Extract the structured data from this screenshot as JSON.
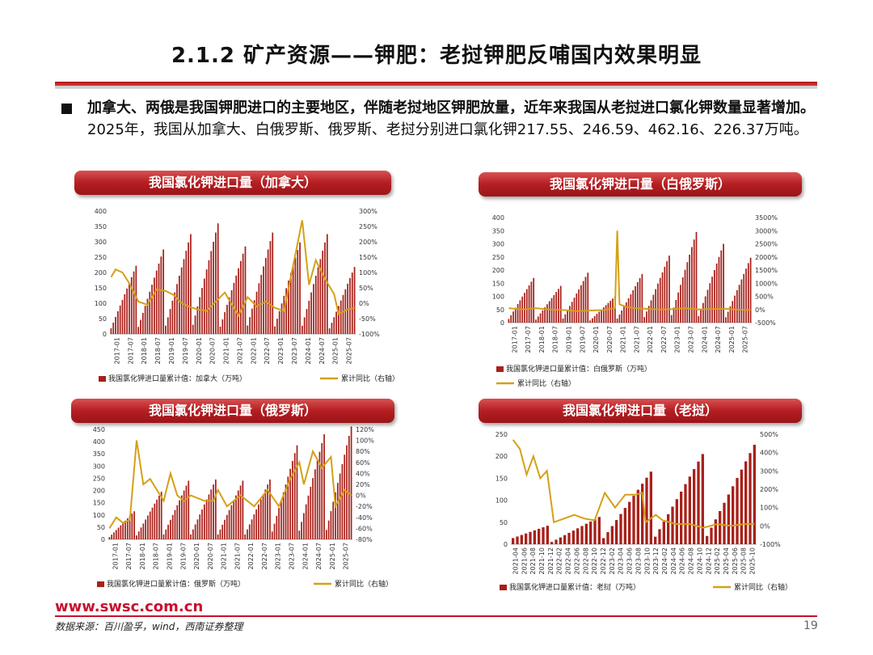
{
  "slide": {
    "title": "2.1.2 矿产资源——钾肥：老挝钾肥反哺国内效果明显",
    "bullet_bold": "加拿大、两俄是我国钾肥进口的主要地区，伴随老挝地区钾肥放量，近年来我国从老挝进口氯化钾数量显著增加。",
    "bullet_rest": "2025年，我国从加拿大、白俄罗斯、俄罗斯、老挝分别进口氯化钾217.55、246.59、462.16、226.37万吨。",
    "footer_url": "www.swsc.com.cn",
    "source": "数据来源：百川盈孚，wind，西南证券整理",
    "page": "19"
  },
  "colors": {
    "bar": "#a8201a",
    "line": "#d4a017",
    "accent": "#c8102e"
  },
  "chart_data": [
    {
      "type": "bar",
      "title": "我国氯化钾进口量（加拿大）",
      "x_start": "2017-01",
      "x_end": "2025-12",
      "tick_labels": [
        "2017-01",
        "2017-07",
        "2018-01",
        "2018-07",
        "2019-01",
        "2019-07",
        "2020-01",
        "2020-07",
        "2021-01",
        "2021-07",
        "2022-01",
        "2022-07",
        "2023-01",
        "2023-07",
        "2024-01",
        "2024-07",
        "2025-01",
        "2025-07"
      ],
      "y_left": {
        "min": 0,
        "max": 400,
        "ticks": [
          "0",
          "50",
          "100",
          "150",
          "200",
          "250",
          "300",
          "350",
          "400"
        ]
      },
      "y_right": {
        "min": -100,
        "max": 300,
        "ticks": [
          "-100%",
          "-50%",
          "0%",
          "50%",
          "100%",
          "150%",
          "200%",
          "250%",
          "300%"
        ]
      },
      "series": [
        {
          "name": "我国氯化钾进口量累计值：加拿大（万吨）",
          "type": "bar",
          "axis": "left",
          "year_end_values": [
            222,
            275,
            325,
            360,
            285,
            330,
            298,
            325,
            218
          ]
        },
        {
          "name": "累计同比（右轴）",
          "type": "line",
          "axis": "right",
          "points": [
            [
              0,
              85
            ],
            [
              2,
              110
            ],
            [
              5,
              100
            ],
            [
              8,
              65
            ],
            [
              12,
              5
            ],
            [
              16,
              -5
            ],
            [
              20,
              45
            ],
            [
              24,
              40
            ],
            [
              28,
              25
            ],
            [
              30,
              5
            ],
            [
              34,
              -10
            ],
            [
              38,
              -20
            ],
            [
              42,
              -25
            ],
            [
              46,
              5
            ],
            [
              50,
              35
            ],
            [
              56,
              -40
            ],
            [
              60,
              20
            ],
            [
              64,
              -10
            ],
            [
              68,
              5
            ],
            [
              72,
              -15
            ],
            [
              76,
              -25
            ],
            [
              84,
              270
            ],
            [
              87,
              60
            ],
            [
              90,
              140
            ],
            [
              94,
              80
            ],
            [
              98,
              30
            ],
            [
              100,
              -35
            ],
            [
              104,
              -20
            ],
            [
              107,
              -15
            ]
          ]
        }
      ],
      "legend": "bottom"
    },
    {
      "type": "bar",
      "title": "我国氯化钾进口量（白俄罗斯）",
      "x_start": "2017-01",
      "x_end": "2025-12",
      "tick_labels": [
        "2017-01",
        "2017-07",
        "2018-01",
        "2018-07",
        "2019-01",
        "2019-07",
        "2020-01",
        "2020-07",
        "2021-01",
        "2021-07",
        "2022-01",
        "2022-07",
        "2023-01",
        "2023-07",
        "2024-01",
        "2024-07",
        "2025-01",
        "2025-07"
      ],
      "y_left": {
        "min": 0,
        "max": 400,
        "ticks": [
          "0",
          "50",
          "100",
          "150",
          "200",
          "250",
          "300",
          "350",
          "400"
        ]
      },
      "y_right": {
        "min": -500,
        "max": 3500,
        "ticks": [
          "-500%",
          "0%",
          "500%",
          "1000%",
          "1500%",
          "2000%",
          "2500%",
          "3000%",
          "3500%"
        ]
      },
      "series": [
        {
          "name": "我国氯化钾进口量累计值：白俄罗斯（万吨）",
          "type": "bar",
          "axis": "left",
          "year_end_values": [
            170,
            140,
            190,
            100,
            185,
            255,
            345,
            300,
            247
          ]
        },
        {
          "name": "累计同比（右轴）",
          "type": "line",
          "axis": "right",
          "points": [
            [
              0,
              50
            ],
            [
              6,
              0
            ],
            [
              12,
              50
            ],
            [
              18,
              0
            ],
            [
              24,
              -20
            ],
            [
              30,
              -60
            ],
            [
              36,
              -40
            ],
            [
              42,
              -20
            ],
            [
              47,
              50
            ],
            [
              48,
              3000
            ],
            [
              49,
              200
            ],
            [
              52,
              100
            ],
            [
              56,
              50
            ],
            [
              60,
              30
            ],
            [
              66,
              0
            ],
            [
              72,
              10
            ],
            [
              78,
              50
            ],
            [
              84,
              0
            ],
            [
              90,
              20
            ],
            [
              96,
              30
            ],
            [
              100,
              0
            ],
            [
              107,
              -20
            ]
          ]
        }
      ],
      "legend": "bottom"
    },
    {
      "type": "bar",
      "title": "我国氯化钾进口量（俄罗斯）",
      "x_start": "2017-01",
      "x_end": "2025-12",
      "tick_labels": [
        "2017-01",
        "2017-07",
        "2018-01",
        "2018-07",
        "2019-01",
        "2019-07",
        "2020-01",
        "2020-07",
        "2021-01",
        "2021-07",
        "2022-01",
        "2022-07",
        "2023-01",
        "2023-07",
        "2024-01",
        "2024-07",
        "2025-01",
        "2025-07"
      ],
      "y_left": {
        "min": 0,
        "max": 450,
        "ticks": [
          "0",
          "50",
          "100",
          "150",
          "200",
          "250",
          "300",
          "350",
          "400",
          "450"
        ]
      },
      "y_right": {
        "min": -80,
        "max": 120,
        "ticks": [
          "-80%",
          "-60%",
          "-40%",
          "-20%",
          "0%",
          "20%",
          "40%",
          "60%",
          "80%",
          "100%",
          "120%"
        ]
      },
      "series": [
        {
          "name": "我国氯化钾进口量累计值：俄罗斯（万吨）",
          "type": "bar",
          "axis": "left",
          "year_end_values": [
            115,
            195,
            240,
            245,
            240,
            245,
            385,
            430,
            462
          ]
        },
        {
          "name": "累计同比（右轴）",
          "type": "line",
          "axis": "right",
          "points": [
            [
              0,
              -60
            ],
            [
              3,
              -40
            ],
            [
              6,
              -50
            ],
            [
              9,
              -45
            ],
            [
              12,
              100
            ],
            [
              15,
              20
            ],
            [
              18,
              30
            ],
            [
              21,
              10
            ],
            [
              24,
              -10
            ],
            [
              27,
              40
            ],
            [
              30,
              0
            ],
            [
              33,
              -10
            ],
            [
              36,
              0
            ],
            [
              42,
              -10
            ],
            [
              46,
              -10
            ],
            [
              48,
              10
            ],
            [
              52,
              -20
            ],
            [
              58,
              0
            ],
            [
              64,
              -20
            ],
            [
              70,
              10
            ],
            [
              75,
              -20
            ],
            [
              80,
              30
            ],
            [
              84,
              60
            ],
            [
              86,
              20
            ],
            [
              90,
              80
            ],
            [
              94,
              50
            ],
            [
              98,
              70
            ],
            [
              100,
              -20
            ],
            [
              104,
              10
            ],
            [
              107,
              0
            ]
          ]
        }
      ],
      "legend": "bottom"
    },
    {
      "type": "bar",
      "title": "我国氯化钾进口量（老挝）",
      "x_start": "2021-04",
      "x_end": "2025-12",
      "tick_labels": [
        "2021-04",
        "2021-06",
        "2021-08",
        "2021-10",
        "2021-12",
        "2022-02",
        "2022-04",
        "2022-06",
        "2022-08",
        "2022-10",
        "2022-12",
        "2023-02",
        "2023-04",
        "2023-06",
        "2023-08",
        "2023-10",
        "2023-12",
        "2024-02",
        "2024-04",
        "2024-06",
        "2024-08",
        "2024-10",
        "2024-12",
        "2025-02",
        "2025-04",
        "2025-06",
        "2025-08",
        "2025-10"
      ],
      "y_left": {
        "min": 0,
        "max": 250,
        "ticks": [
          "0",
          "50",
          "100",
          "150",
          "200",
          "250"
        ]
      },
      "y_right": {
        "min": -100,
        "max": 500,
        "ticks": [
          "-100%",
          "0%",
          "100%",
          "200%",
          "300%",
          "400%",
          "500%"
        ]
      },
      "series": [
        {
          "name": "我国氯化钾进口量累计值：老挝（万吨）",
          "type": "bar",
          "axis": "left",
          "year_end_values": [
            42,
            62,
            165,
            205,
            226
          ]
        },
        {
          "name": "累计同比（右轴）",
          "type": "line",
          "axis": "right",
          "points": [
            [
              0,
              470
            ],
            [
              2,
              420
            ],
            [
              4,
              280
            ],
            [
              6,
              380
            ],
            [
              8,
              260
            ],
            [
              10,
              300
            ],
            [
              12,
              20
            ],
            [
              15,
              40
            ],
            [
              18,
              60
            ],
            [
              21,
              40
            ],
            [
              24,
              30
            ],
            [
              27,
              180
            ],
            [
              30,
              100
            ],
            [
              33,
              170
            ],
            [
              36,
              170
            ],
            [
              38,
              180
            ],
            [
              39,
              20
            ],
            [
              42,
              60
            ],
            [
              44,
              30
            ],
            [
              48,
              10
            ],
            [
              52,
              10
            ],
            [
              56,
              -10
            ],
            [
              60,
              10
            ],
            [
              64,
              0
            ],
            [
              68,
              10
            ],
            [
              71,
              10
            ]
          ]
        }
      ],
      "legend": "bottom"
    }
  ]
}
